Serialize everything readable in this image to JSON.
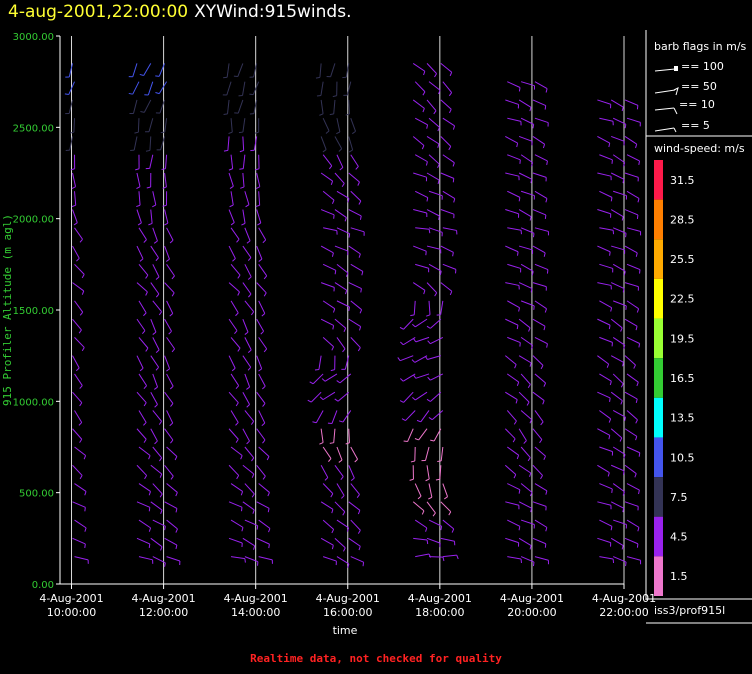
{
  "header": {
    "date": "4-aug-2001,22:00:00",
    "name": "XYWind:915winds."
  },
  "footer": {
    "note": "Realtime data, not checked for quality"
  },
  "legend": {
    "barb_title": "barb flags in m/s",
    "barbs": [
      "== 100",
      "== 50",
      "== 10",
      "== 5"
    ],
    "speed_title": "wind-speed: m/s",
    "station": "iss3/prof915l",
    "colors": [
      {
        "label": "31.5",
        "color": "#ff1a4a"
      },
      {
        "label": "28.5",
        "color": "#ff7f00"
      },
      {
        "label": "25.5",
        "color": "#ffaa00"
      },
      {
        "label": "22.5",
        "color": "#ffff00"
      },
      {
        "label": "19.5",
        "color": "#99ff33"
      },
      {
        "label": "16.5",
        "color": "#33cc33"
      },
      {
        "label": "13.5",
        "color": "#00ffff"
      },
      {
        "label": "10.5",
        "color": "#4455ee"
      },
      {
        "label": "7.5",
        "color": "#333355"
      },
      {
        "label": "4.5",
        "color": "#9922ee"
      },
      {
        "label": "1.5",
        "color": "#ee77cc"
      }
    ]
  },
  "chart_data": {
    "type": "scatter",
    "subtype": "wind-barbs",
    "xlabel": "time",
    "ylabel": "915 Profiler Altitude (m agl)",
    "ylim": [
      0,
      3000
    ],
    "y_ticks": [
      "0.00",
      "500.00",
      "1000.00",
      "1500.00",
      "2000.00",
      "2500.00",
      "3000.00"
    ],
    "x_range_hours": [
      9.75,
      22.0
    ],
    "x_ticks": [
      {
        "date": "4-Aug-2001",
        "time": "10:00:00"
      },
      {
        "date": "4-Aug-2001",
        "time": "12:00:00"
      },
      {
        "date": "4-Aug-2001",
        "time": "14:00:00"
      },
      {
        "date": "4-Aug-2001",
        "time": "16:00:00"
      },
      {
        "date": "4-Aug-2001",
        "time": "18:00:00"
      },
      {
        "date": "4-Aug-2001",
        "time": "20:00:00"
      },
      {
        "date": "4-Aug-2001",
        "time": "22:00:00"
      }
    ],
    "grid": "vertical",
    "series": [
      {
        "time": "10:00:00",
        "values": [
          {
            "alt": 200,
            "dir": 110,
            "spd": 4.5
          },
          {
            "alt": 500,
            "dir": 120,
            "spd": 4.5
          },
          {
            "alt": 800,
            "dir": 135,
            "spd": 4.5
          },
          {
            "alt": 1100,
            "dir": 145,
            "spd": 4.5
          },
          {
            "alt": 1400,
            "dir": 140,
            "spd": 4.5
          },
          {
            "alt": 1700,
            "dir": 130,
            "spd": 4.5
          },
          {
            "alt": 2200,
            "dir": 170,
            "spd": 4.5
          },
          {
            "alt": 2600,
            "dir": 190,
            "spd": 7.5
          },
          {
            "alt": 2900,
            "dir": 200,
            "spd": 10.5
          }
        ]
      },
      {
        "time": "12:00:00",
        "values": [
          {
            "alt": 200,
            "dir": 115,
            "spd": 4.5
          },
          {
            "alt": 500,
            "dir": 125,
            "spd": 4.5
          },
          {
            "alt": 800,
            "dir": 140,
            "spd": 4.5
          },
          {
            "alt": 1100,
            "dir": 150,
            "spd": 4.5
          },
          {
            "alt": 1400,
            "dir": 150,
            "spd": 4.5
          },
          {
            "alt": 1700,
            "dir": 140,
            "spd": 4.5
          },
          {
            "alt": 2200,
            "dir": 175,
            "spd": 4.5
          },
          {
            "alt": 2600,
            "dir": 195,
            "spd": 7.5
          },
          {
            "alt": 2900,
            "dir": 210,
            "spd": 10.5
          }
        ]
      },
      {
        "time": "14:00:00",
        "values": [
          {
            "alt": 200,
            "dir": 110,
            "spd": 4.5
          },
          {
            "alt": 500,
            "dir": 125,
            "spd": 4.5
          },
          {
            "alt": 800,
            "dir": 140,
            "spd": 4.5
          },
          {
            "alt": 1100,
            "dir": 150,
            "spd": 4.5
          },
          {
            "alt": 1400,
            "dir": 150,
            "spd": 4.5
          },
          {
            "alt": 1700,
            "dir": 140,
            "spd": 4.5
          },
          {
            "alt": 2200,
            "dir": 170,
            "spd": 4.5
          },
          {
            "alt": 2900,
            "dir": 200,
            "spd": 7.5
          }
        ]
      },
      {
        "time": "16:00:00",
        "values": [
          {
            "alt": 200,
            "dir": 120,
            "spd": 4.5
          },
          {
            "alt": 500,
            "dir": 135,
            "spd": 4.5
          },
          {
            "alt": 800,
            "dir": 160,
            "spd": 1.5
          },
          {
            "alt": 1100,
            "dir": 250,
            "spd": 4.5
          },
          {
            "alt": 1400,
            "dir": 120,
            "spd": 4.5
          },
          {
            "alt": 1700,
            "dir": 120,
            "spd": 4.5
          },
          {
            "alt": 2000,
            "dir": 110,
            "spd": 4.5
          },
          {
            "alt": 2900,
            "dir": 200,
            "spd": 7.5
          }
        ]
      },
      {
        "time": "18:00:00",
        "values": [
          {
            "alt": 200,
            "dir": 90,
            "spd": 4.5
          },
          {
            "alt": 500,
            "dir": 150,
            "spd": 1.5
          },
          {
            "alt": 800,
            "dir": 200,
            "spd": 1.5
          },
          {
            "alt": 1100,
            "dir": 240,
            "spd": 4.5
          },
          {
            "alt": 1400,
            "dir": 250,
            "spd": 4.5
          },
          {
            "alt": 1700,
            "dir": 110,
            "spd": 4.5
          },
          {
            "alt": 2000,
            "dir": 105,
            "spd": 4.5
          },
          {
            "alt": 2400,
            "dir": 125,
            "spd": 4.5
          },
          {
            "alt": 2900,
            "dir": 135,
            "spd": 4.5
          }
        ]
      },
      {
        "time": "20:00:00",
        "values": [
          {
            "alt": 200,
            "dir": 110,
            "spd": 4.5
          },
          {
            "alt": 500,
            "dir": 115,
            "spd": 4.5
          },
          {
            "alt": 800,
            "dir": 140,
            "spd": 4.5
          },
          {
            "alt": 1100,
            "dir": 130,
            "spd": 4.5
          },
          {
            "alt": 1400,
            "dir": 120,
            "spd": 4.5
          },
          {
            "alt": 1700,
            "dir": 110,
            "spd": 4.5
          },
          {
            "alt": 2000,
            "dir": 110,
            "spd": 4.5
          },
          {
            "alt": 2400,
            "dir": 115,
            "spd": 4.5
          },
          {
            "alt": 2800,
            "dir": 110,
            "spd": 4.5
          }
        ]
      },
      {
        "time": "22:00:00",
        "values": [
          {
            "alt": 200,
            "dir": 110,
            "spd": 4.5
          },
          {
            "alt": 500,
            "dir": 115,
            "spd": 4.5
          },
          {
            "alt": 800,
            "dir": 120,
            "spd": 4.5
          },
          {
            "alt": 1100,
            "dir": 125,
            "spd": 4.5
          },
          {
            "alt": 1400,
            "dir": 120,
            "spd": 4.5
          },
          {
            "alt": 1700,
            "dir": 110,
            "spd": 4.5
          },
          {
            "alt": 2000,
            "dir": 110,
            "spd": 4.5
          },
          {
            "alt": 2400,
            "dir": 115,
            "spd": 4.5
          },
          {
            "alt": 2700,
            "dir": 110,
            "spd": 4.5
          }
        ]
      }
    ]
  }
}
